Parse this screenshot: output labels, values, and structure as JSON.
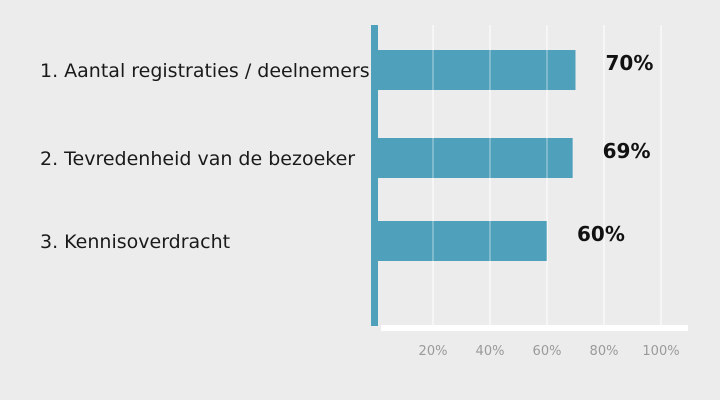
{
  "chart_data": {
    "type": "bar",
    "orientation": "horizontal",
    "categories": [
      "1. Aantal registraties / deelnemers",
      "2. Tevredenheid van de bezoeker",
      "3. Kennisoverdracht"
    ],
    "values": [
      70,
      69,
      60
    ],
    "value_labels": [
      "70%",
      "69%",
      "60%"
    ],
    "xlim": [
      0,
      105
    ],
    "xticks": [
      20,
      40,
      60,
      80,
      100
    ],
    "xtick_labels": [
      "20%",
      "40%",
      "60%",
      "80%",
      "100%"
    ],
    "grid": true,
    "legend": "none",
    "title": "",
    "xlabel": "",
    "ylabel": ""
  },
  "colors": {
    "bar": "#4fa0ba",
    "axis": "#4fa0ba",
    "grid": "#ffffff",
    "background": "#ececec",
    "baseline": "#ffffff"
  }
}
